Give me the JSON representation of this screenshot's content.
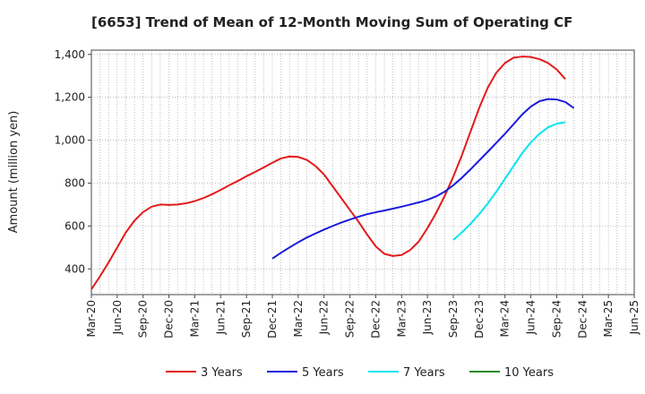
{
  "chart_data": {
    "type": "line",
    "title": "[6653]  Trend of Mean of 12-Month Moving Sum of Operating CF",
    "xlabel": "",
    "ylabel": "Amount (million yen)",
    "ylim": [
      280,
      1420
    ],
    "yticks": [
      400,
      600,
      800,
      1000,
      1200,
      1400
    ],
    "ytick_labels": [
      "400",
      "600",
      "800",
      "1,000",
      "1,200",
      "1,400"
    ],
    "x_categories": [
      "Mar-20",
      "Jun-20",
      "Sep-20",
      "Dec-20",
      "Mar-21",
      "Jun-21",
      "Sep-21",
      "Dec-21",
      "Mar-22",
      "Jun-22",
      "Sep-22",
      "Dec-22",
      "Mar-23",
      "Jun-23",
      "Sep-23",
      "Dec-23",
      "Mar-24",
      "Jun-24",
      "Sep-24",
      "Dec-24",
      "Mar-25",
      "Jun-25"
    ],
    "grid": true,
    "legend_position": "bottom",
    "series": [
      {
        "name": "3 Years",
        "color": "#e31a1c",
        "start_index": 0,
        "values": [
          305,
          365,
          430,
          500,
          570,
          625,
          665,
          690,
          700,
          698,
          700,
          706,
          716,
          730,
          748,
          768,
          790,
          810,
          832,
          852,
          873,
          895,
          915,
          924,
          922,
          908,
          880,
          840,
          785,
          730,
          675,
          620,
          560,
          505,
          470,
          460,
          465,
          488,
          528,
          590,
          660,
          740,
          830,
          930,
          1040,
          1150,
          1245,
          1315,
          1360,
          1385,
          1390,
          1388,
          1378,
          1360,
          1330,
          1285
        ]
      },
      {
        "name": "5 Years",
        "color": "#1a1adc",
        "start_index": 21,
        "values": [
          448,
          475,
          500,
          524,
          546,
          565,
          583,
          600,
          616,
          630,
          643,
          655,
          664,
          672,
          681,
          690,
          700,
          710,
          722,
          738,
          760,
          790,
          825,
          864,
          905,
          946,
          988,
          1030,
          1075,
          1120,
          1157,
          1182,
          1192,
          1190,
          1178,
          1150
        ]
      },
      {
        "name": "7 Years",
        "color": "#00e5ee",
        "start_index": 42,
        "values": [
          535,
          570,
          610,
          655,
          705,
          760,
          820,
          880,
          940,
          990,
          1030,
          1060,
          1077,
          1084
        ]
      },
      {
        "name": "10 Years",
        "color": "#1a8a1a",
        "start_index": 0,
        "values": []
      }
    ]
  }
}
